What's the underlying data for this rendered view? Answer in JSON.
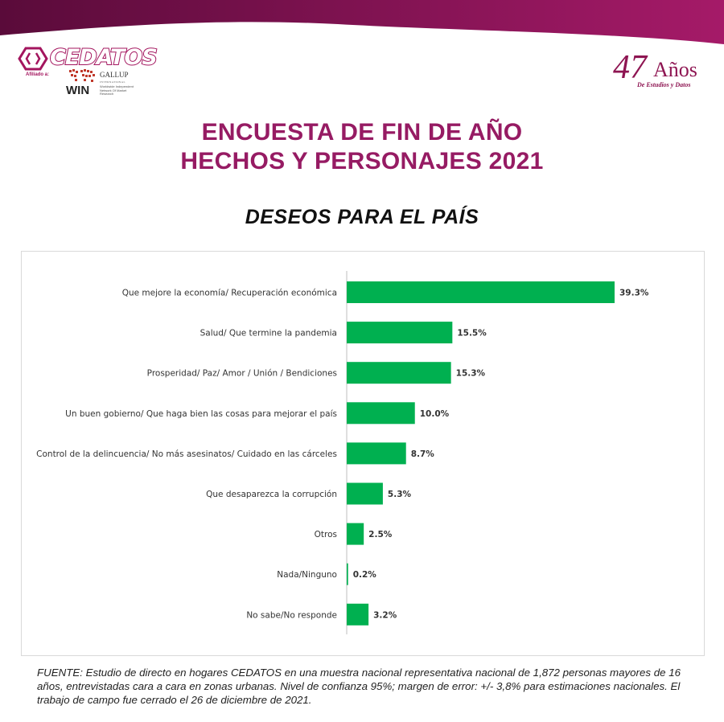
{
  "header": {
    "brand": "CEDATOS",
    "affiliation_label": "Afiliado a:",
    "win_label": "WIN",
    "gallup_label": "GALLUP",
    "gallup_sub": "INTERNATIONAL",
    "win_description": "Worldwide Independent Network Of Market Research",
    "anniversary_number": "47",
    "anniversary_word": "Años",
    "anniversary_sub": "De Estudios y Datos",
    "brand_color": "#961b63"
  },
  "title_line1": "ENCUESTA DE FIN DE AÑO",
  "title_line2": "HECHOS Y PERSONAJES 2021",
  "subtitle": "DESEOS PARA EL PAÍS",
  "chart_data": {
    "type": "bar",
    "orientation": "horizontal",
    "title": "DESEOS PARA EL PAÍS",
    "categories": [
      "Que mejore la economía/ Recuperación económica",
      "Salud/ Que termine la pandemia",
      "Prosperidad/ Paz/ Amor / Unión / Bendiciones",
      "Un buen gobierno/ Que haga bien las cosas para mejorar el país",
      "Control de la delincuencia/ No más asesinatos/ Cuidado en las cárceles",
      "Que desaparezca la corrupción",
      "Otros",
      "Nada/Ninguno",
      "No sabe/No responde"
    ],
    "values": [
      39.3,
      15.5,
      15.3,
      10.0,
      8.7,
      5.3,
      2.5,
      0.2,
      3.2
    ],
    "value_labels": [
      "39.3%",
      "15.5%",
      "15.3%",
      "10.0%",
      "8.7%",
      "5.3%",
      "2.5%",
      "0.2%",
      "3.2%"
    ],
    "unit": "%",
    "xlim": [
      0,
      40
    ],
    "bar_color": "#00b050",
    "grid": false,
    "legend": "none"
  },
  "source_note": "FUENTE: Estudio de directo en hogares CEDATOS en una muestra nacional representativa nacional de 1,872 personas mayores de 16 años, entrevistadas cara a cara en zonas urbanas. Nivel de confianza 95%; margen de error: +/- 3,8% para estimaciones nacionales. El trabajo de campo fue cerrado el 26 de diciembre de 2021."
}
